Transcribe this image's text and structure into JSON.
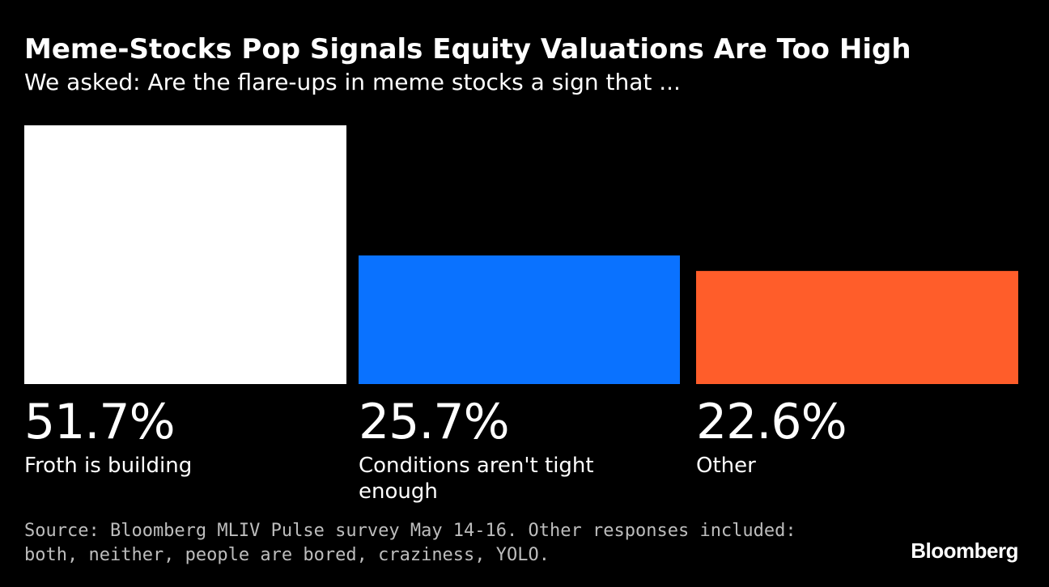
{
  "header": {
    "title": "Meme-Stocks Pop Signals Equity Valuations Are Too High",
    "subtitle": "We asked: Are the flare-ups in meme stocks a sign that ..."
  },
  "chart_data": {
    "type": "bar",
    "categories": [
      "Froth is building",
      "Conditions aren't tight enough",
      "Other"
    ],
    "values": [
      51.7,
      25.7,
      22.6
    ],
    "value_labels": [
      "51.7%",
      "25.7%",
      "22.6%"
    ],
    "colors": [
      "#ffffff",
      "#0a72ff",
      "#ff5d2a"
    ],
    "ylim": [
      0,
      51.7
    ],
    "grid": false,
    "legend": "none"
  },
  "footer": {
    "source": "Source: Bloomberg MLIV Pulse survey May 14-16. Other responses included: both, neither, people are bored, craziness, YOLO.",
    "logo": "Bloomberg"
  }
}
